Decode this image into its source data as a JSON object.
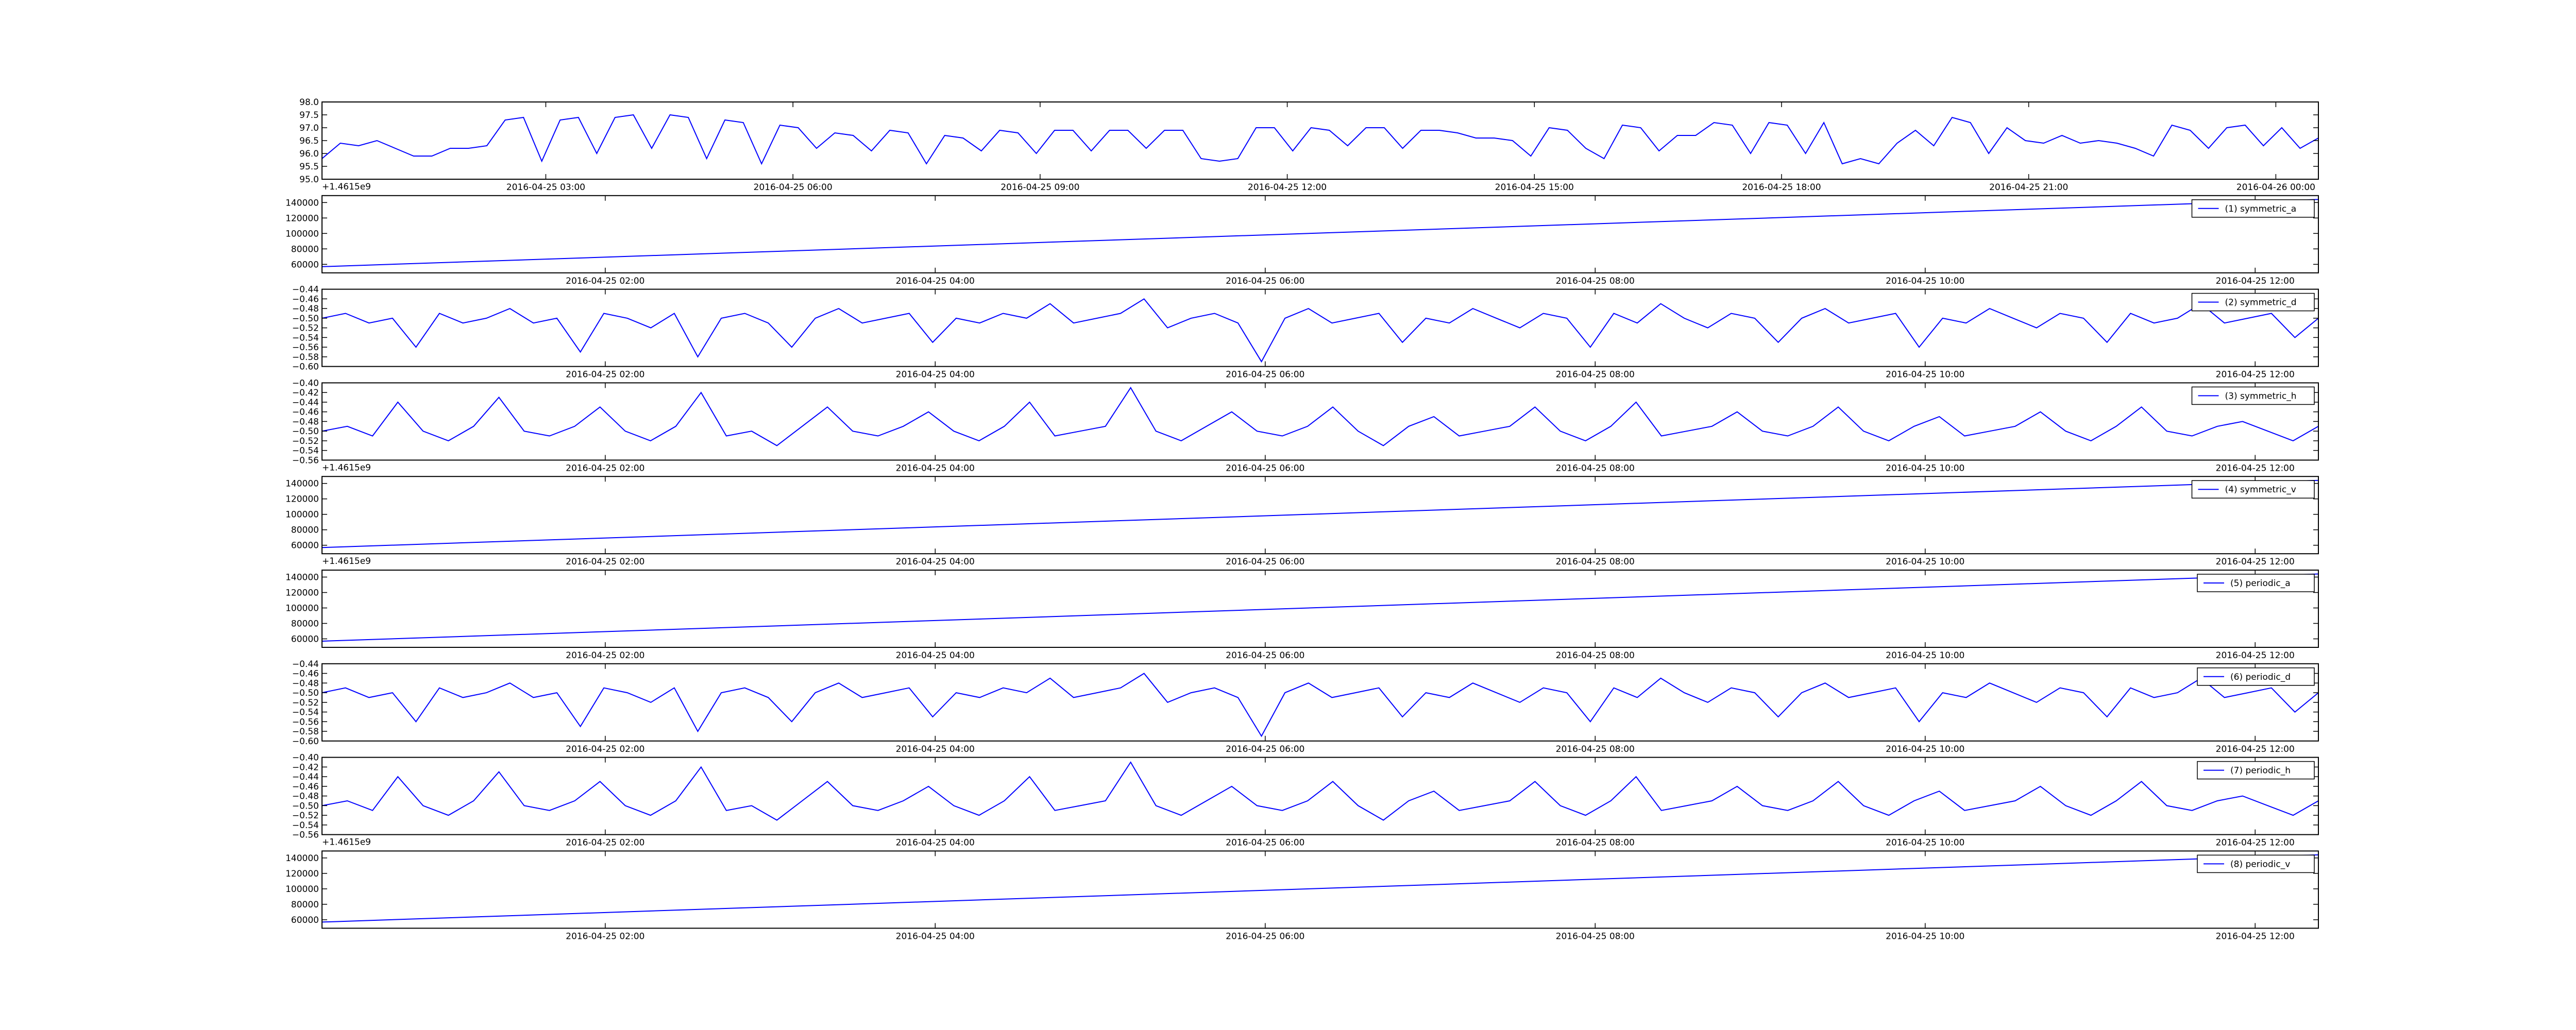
{
  "chart_data": [
    {
      "type": "line",
      "xlim": [
        "2016-04-25 00:17",
        "2016-04-26 00:31"
      ],
      "xticks": [
        "2016-04-25 03:00",
        "2016-04-25 06:00",
        "2016-04-25 09:00",
        "2016-04-25 12:00",
        "2016-04-25 15:00",
        "2016-04-25 18:00",
        "2016-04-25 21:00",
        "2016-04-26 00:00"
      ],
      "ylim": [
        95,
        98
      ],
      "yticks": [
        {
          "value": 95,
          "label": "95.0"
        },
        {
          "value": 95.5,
          "label": "95.5"
        },
        {
          "value": 96,
          "label": "96.0"
        },
        {
          "value": 96.5,
          "label": "96.5"
        },
        {
          "value": 97,
          "label": "97.0"
        },
        {
          "value": 97.5,
          "label": "97.5"
        },
        {
          "value": 98,
          "label": "98.0"
        }
      ],
      "offset_text": "+1.4615e9",
      "series": [
        {
          "color": "#0000ff",
          "values": [
            95.8,
            96.4,
            96.3,
            96.5,
            96.2,
            95.9,
            95.9,
            96.2,
            96.2,
            96.3,
            97.3,
            97.4,
            95.7,
            97.3,
            97.4,
            96.0,
            97.4,
            97.5,
            96.2,
            97.5,
            97.4,
            95.8,
            97.3,
            97.2,
            95.6,
            97.1,
            97.0,
            96.2,
            96.8,
            96.7,
            96.1,
            96.9,
            96.8,
            95.6,
            96.7,
            96.6,
            96.1,
            96.9,
            96.8,
            96.0,
            96.9,
            96.9,
            96.1,
            96.9,
            96.9,
            96.2,
            96.9,
            96.9,
            95.8,
            95.7,
            95.8,
            97.0,
            97.0,
            96.1,
            97.0,
            96.9,
            96.3,
            97.0,
            97.0,
            96.2,
            96.9,
            96.9,
            96.8,
            96.6,
            96.6,
            96.5,
            95.9,
            97.0,
            96.9,
            96.2,
            95.8,
            97.1,
            97.0,
            96.1,
            96.7,
            96.7,
            97.2,
            97.1,
            96.0,
            97.2,
            97.1,
            96.0,
            97.2,
            95.6,
            95.8,
            95.6,
            96.4,
            96.9,
            96.3,
            97.4,
            97.2,
            96.0,
            97.0,
            96.5,
            96.4,
            96.7,
            96.4,
            96.5,
            96.4,
            96.2,
            95.9,
            97.1,
            96.9,
            96.2,
            97.0,
            97.1,
            96.3,
            97.0,
            96.2,
            96.6
          ]
        }
      ]
    },
    {
      "type": "line",
      "xlim": [
        "2016-04-25 00:17",
        "2016-04-25 12:23"
      ],
      "xticks": [
        "2016-04-25 02:00",
        "2016-04-25 04:00",
        "2016-04-25 06:00",
        "2016-04-25 08:00",
        "2016-04-25 10:00",
        "2016-04-25 12:00"
      ],
      "ylim": [
        49000,
        149000
      ],
      "yticks": [
        60000,
        80000,
        100000,
        120000,
        140000
      ],
      "legend": "upper right",
      "x": [
        "2016-04-25 00:17",
        "2016-04-25 12:23"
      ],
      "series": [
        {
          "name": "(1) symmetric_a",
          "color": "#0000ff",
          "values": [
            57000,
            144000
          ]
        }
      ]
    },
    {
      "type": "line",
      "xlim": [
        "2016-04-25 00:17",
        "2016-04-25 12:23"
      ],
      "xticks": [
        "2016-04-25 02:00",
        "2016-04-25 04:00",
        "2016-04-25 06:00",
        "2016-04-25 08:00",
        "2016-04-25 10:00",
        "2016-04-25 12:00"
      ],
      "ylim": [
        -0.6,
        -0.44
      ],
      "yticks": [
        {
          "value": -0.6,
          "label": "−0.60"
        },
        {
          "value": -0.58,
          "label": "−0.58"
        },
        {
          "value": -0.56,
          "label": "−0.56"
        },
        {
          "value": -0.54,
          "label": "−0.54"
        },
        {
          "value": -0.52,
          "label": "−0.52"
        },
        {
          "value": -0.5,
          "label": "−0.50"
        },
        {
          "value": -0.48,
          "label": "−0.48"
        },
        {
          "value": -0.46,
          "label": "−0.46"
        },
        {
          "value": -0.44,
          "label": "−0.44"
        }
      ],
      "legend": "upper right",
      "series": [
        {
          "name": "(2) symmetric_d",
          "color": "#0000ff",
          "values": [
            -0.5,
            -0.49,
            -0.51,
            -0.5,
            -0.56,
            -0.49,
            -0.51,
            -0.5,
            -0.48,
            -0.51,
            -0.5,
            -0.57,
            -0.49,
            -0.5,
            -0.52,
            -0.49,
            -0.58,
            -0.5,
            -0.49,
            -0.51,
            -0.56,
            -0.5,
            -0.48,
            -0.51,
            -0.5,
            -0.49,
            -0.55,
            -0.5,
            -0.51,
            -0.49,
            -0.5,
            -0.47,
            -0.51,
            -0.5,
            -0.49,
            -0.46,
            -0.52,
            -0.5,
            -0.49,
            -0.51,
            -0.59,
            -0.5,
            -0.48,
            -0.51,
            -0.5,
            -0.49,
            -0.55,
            -0.5,
            -0.51,
            -0.48,
            -0.5,
            -0.52,
            -0.49,
            -0.5,
            -0.56,
            -0.49,
            -0.51,
            -0.47,
            -0.5,
            -0.52,
            -0.49,
            -0.5,
            -0.55,
            -0.5,
            -0.48,
            -0.51,
            -0.5,
            -0.49,
            -0.56,
            -0.5,
            -0.51,
            -0.48,
            -0.5,
            -0.52,
            -0.49,
            -0.5,
            -0.55,
            -0.49,
            -0.51,
            -0.5,
            -0.47,
            -0.51,
            -0.5,
            -0.49,
            -0.54,
            -0.5
          ]
        }
      ]
    },
    {
      "type": "line",
      "xlim": [
        "2016-04-25 00:17",
        "2016-04-25 12:23"
      ],
      "xticks": [
        "2016-04-25 02:00",
        "2016-04-25 04:00",
        "2016-04-25 06:00",
        "2016-04-25 08:00",
        "2016-04-25 10:00",
        "2016-04-25 12:00"
      ],
      "ylim": [
        -0.56,
        -0.4
      ],
      "yticks": [
        {
          "value": -0.56,
          "label": "−0.56"
        },
        {
          "value": -0.54,
          "label": "−0.54"
        },
        {
          "value": -0.52,
          "label": "−0.52"
        },
        {
          "value": -0.5,
          "label": "−0.50"
        },
        {
          "value": -0.48,
          "label": "−0.48"
        },
        {
          "value": -0.46,
          "label": "−0.46"
        },
        {
          "value": -0.44,
          "label": "−0.44"
        },
        {
          "value": -0.42,
          "label": "−0.42"
        },
        {
          "value": -0.4,
          "label": "−0.40"
        }
      ],
      "legend": "upper right",
      "offset_text": "+1.4615e9",
      "series": [
        {
          "name": "(3) symmetric_h",
          "color": "#0000ff",
          "values": [
            -0.5,
            -0.49,
            -0.51,
            -0.44,
            -0.5,
            -0.52,
            -0.49,
            -0.43,
            -0.5,
            -0.51,
            -0.49,
            -0.45,
            -0.5,
            -0.52,
            -0.49,
            -0.42,
            -0.51,
            -0.5,
            -0.53,
            -0.49,
            -0.45,
            -0.5,
            -0.51,
            -0.49,
            -0.46,
            -0.5,
            -0.52,
            -0.49,
            -0.44,
            -0.51,
            -0.5,
            -0.49,
            -0.41,
            -0.5,
            -0.52,
            -0.49,
            -0.46,
            -0.5,
            -0.51,
            -0.49,
            -0.45,
            -0.5,
            -0.53,
            -0.49,
            -0.47,
            -0.51,
            -0.5,
            -0.49,
            -0.45,
            -0.5,
            -0.52,
            -0.49,
            -0.44,
            -0.51,
            -0.5,
            -0.49,
            -0.46,
            -0.5,
            -0.51,
            -0.49,
            -0.45,
            -0.5,
            -0.52,
            -0.49,
            -0.47,
            -0.51,
            -0.5,
            -0.49,
            -0.46,
            -0.5,
            -0.52,
            -0.49,
            -0.45,
            -0.5,
            -0.51,
            -0.49,
            -0.48,
            -0.5,
            -0.52,
            -0.49
          ]
        }
      ]
    },
    {
      "type": "line",
      "xlim": [
        "2016-04-25 00:17",
        "2016-04-25 12:23"
      ],
      "xticks": [
        "2016-04-25 02:00",
        "2016-04-25 04:00",
        "2016-04-25 06:00",
        "2016-04-25 08:00",
        "2016-04-25 10:00",
        "2016-04-25 12:00"
      ],
      "ylim": [
        49000,
        149000
      ],
      "yticks": [
        60000,
        80000,
        100000,
        120000,
        140000
      ],
      "legend": "upper right",
      "offset_text": "+1.4615e9",
      "x": [
        "2016-04-25 00:17",
        "2016-04-25 12:23"
      ],
      "series": [
        {
          "name": "(4) symmetric_v",
          "color": "#0000ff",
          "values": [
            57000,
            144000
          ]
        }
      ]
    },
    {
      "type": "line",
      "xlim": [
        "2016-04-25 00:17",
        "2016-04-25 12:23"
      ],
      "xticks": [
        "2016-04-25 02:00",
        "2016-04-25 04:00",
        "2016-04-25 06:00",
        "2016-04-25 08:00",
        "2016-04-25 10:00",
        "2016-04-25 12:00"
      ],
      "ylim": [
        49000,
        149000
      ],
      "yticks": [
        60000,
        80000,
        100000,
        120000,
        140000
      ],
      "legend": "upper right",
      "x": [
        "2016-04-25 00:17",
        "2016-04-25 12:23"
      ],
      "series": [
        {
          "name": "(5) periodic_a",
          "color": "#0000ff",
          "values": [
            57000,
            144000
          ]
        }
      ]
    },
    {
      "type": "line",
      "xlim": [
        "2016-04-25 00:17",
        "2016-04-25 12:23"
      ],
      "xticks": [
        "2016-04-25 02:00",
        "2016-04-25 04:00",
        "2016-04-25 06:00",
        "2016-04-25 08:00",
        "2016-04-25 10:00",
        "2016-04-25 12:00"
      ],
      "ylim": [
        -0.6,
        -0.44
      ],
      "yticks": [
        {
          "value": -0.6,
          "label": "−0.60"
        },
        {
          "value": -0.58,
          "label": "−0.58"
        },
        {
          "value": -0.56,
          "label": "−0.56"
        },
        {
          "value": -0.54,
          "label": "−0.54"
        },
        {
          "value": -0.52,
          "label": "−0.52"
        },
        {
          "value": -0.5,
          "label": "−0.50"
        },
        {
          "value": -0.48,
          "label": "−0.48"
        },
        {
          "value": -0.46,
          "label": "−0.46"
        },
        {
          "value": -0.44,
          "label": "−0.44"
        }
      ],
      "legend": "upper right",
      "series": [
        {
          "name": "(6) periodic_d",
          "color": "#0000ff",
          "values": [
            -0.5,
            -0.49,
            -0.51,
            -0.5,
            -0.56,
            -0.49,
            -0.51,
            -0.5,
            -0.48,
            -0.51,
            -0.5,
            -0.57,
            -0.49,
            -0.5,
            -0.52,
            -0.49,
            -0.58,
            -0.5,
            -0.49,
            -0.51,
            -0.56,
            -0.5,
            -0.48,
            -0.51,
            -0.5,
            -0.49,
            -0.55,
            -0.5,
            -0.51,
            -0.49,
            -0.5,
            -0.47,
            -0.51,
            -0.5,
            -0.49,
            -0.46,
            -0.52,
            -0.5,
            -0.49,
            -0.51,
            -0.59,
            -0.5,
            -0.48,
            -0.51,
            -0.5,
            -0.49,
            -0.55,
            -0.5,
            -0.51,
            -0.48,
            -0.5,
            -0.52,
            -0.49,
            -0.5,
            -0.56,
            -0.49,
            -0.51,
            -0.47,
            -0.5,
            -0.52,
            -0.49,
            -0.5,
            -0.55,
            -0.5,
            -0.48,
            -0.51,
            -0.5,
            -0.49,
            -0.56,
            -0.5,
            -0.51,
            -0.48,
            -0.5,
            -0.52,
            -0.49,
            -0.5,
            -0.55,
            -0.49,
            -0.51,
            -0.5,
            -0.47,
            -0.51,
            -0.5,
            -0.49,
            -0.54,
            -0.5
          ]
        }
      ]
    },
    {
      "type": "line",
      "xlim": [
        "2016-04-25 00:17",
        "2016-04-25 12:23"
      ],
      "xticks": [
        "2016-04-25 02:00",
        "2016-04-25 04:00",
        "2016-04-25 06:00",
        "2016-04-25 08:00",
        "2016-04-25 10:00",
        "2016-04-25 12:00"
      ],
      "ylim": [
        -0.56,
        -0.4
      ],
      "yticks": [
        {
          "value": -0.56,
          "label": "−0.56"
        },
        {
          "value": -0.54,
          "label": "−0.54"
        },
        {
          "value": -0.52,
          "label": "−0.52"
        },
        {
          "value": -0.5,
          "label": "−0.50"
        },
        {
          "value": -0.48,
          "label": "−0.48"
        },
        {
          "value": -0.46,
          "label": "−0.46"
        },
        {
          "value": -0.44,
          "label": "−0.44"
        },
        {
          "value": -0.42,
          "label": "−0.42"
        },
        {
          "value": -0.4,
          "label": "−0.40"
        }
      ],
      "legend": "upper right",
      "offset_text": "+1.4615e9",
      "series": [
        {
          "name": "(7) periodic_h",
          "color": "#0000ff",
          "values": [
            -0.5,
            -0.49,
            -0.51,
            -0.44,
            -0.5,
            -0.52,
            -0.49,
            -0.43,
            -0.5,
            -0.51,
            -0.49,
            -0.45,
            -0.5,
            -0.52,
            -0.49,
            -0.42,
            -0.51,
            -0.5,
            -0.53,
            -0.49,
            -0.45,
            -0.5,
            -0.51,
            -0.49,
            -0.46,
            -0.5,
            -0.52,
            -0.49,
            -0.44,
            -0.51,
            -0.5,
            -0.49,
            -0.41,
            -0.5,
            -0.52,
            -0.49,
            -0.46,
            -0.5,
            -0.51,
            -0.49,
            -0.45,
            -0.5,
            -0.53,
            -0.49,
            -0.47,
            -0.51,
            -0.5,
            -0.49,
            -0.45,
            -0.5,
            -0.52,
            -0.49,
            -0.44,
            -0.51,
            -0.5,
            -0.49,
            -0.46,
            -0.5,
            -0.51,
            -0.49,
            -0.45,
            -0.5,
            -0.52,
            -0.49,
            -0.47,
            -0.51,
            -0.5,
            -0.49,
            -0.46,
            -0.5,
            -0.52,
            -0.49,
            -0.45,
            -0.5,
            -0.51,
            -0.49,
            -0.48,
            -0.5,
            -0.52,
            -0.49
          ]
        }
      ]
    },
    {
      "type": "line",
      "xlim": [
        "2016-04-25 00:17",
        "2016-04-25 12:23"
      ],
      "xticks": [
        "2016-04-25 02:00",
        "2016-04-25 04:00",
        "2016-04-25 06:00",
        "2016-04-25 08:00",
        "2016-04-25 10:00",
        "2016-04-25 12:00"
      ],
      "ylim": [
        49000,
        149000
      ],
      "yticks": [
        60000,
        80000,
        100000,
        120000,
        140000
      ],
      "legend": "upper right",
      "x": [
        "2016-04-25 00:17",
        "2016-04-25 12:23"
      ],
      "series": [
        {
          "name": "(8) periodic_v",
          "color": "#0000ff",
          "values": [
            57000,
            144000
          ]
        }
      ]
    }
  ]
}
